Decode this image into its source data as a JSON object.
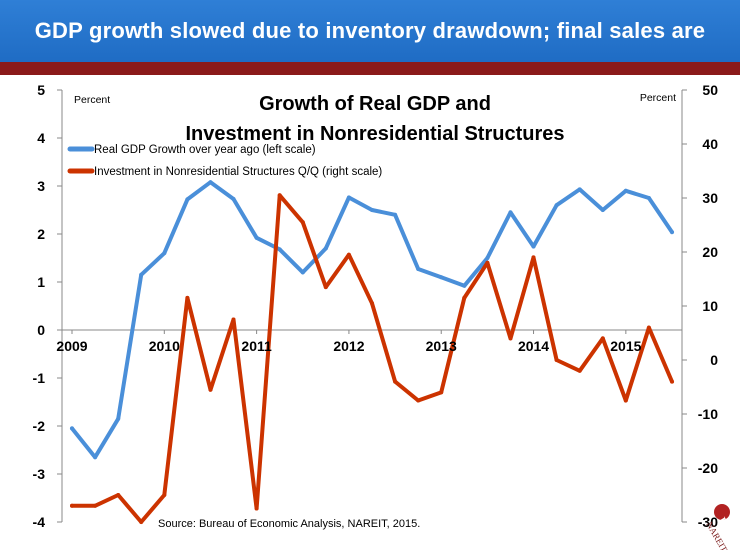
{
  "header": {
    "title": "GDP growth slowed due to inventory drawdown; final sales are robust."
  },
  "logo": {
    "text": "REIT NAREIT"
  },
  "chart_data": {
    "type": "line",
    "title_lines": [
      "Growth of Real GDP and",
      "Investment in Nonresidential Structures"
    ],
    "left_unit": "Percent",
    "right_unit": "Percent",
    "source": "Source: Bureau of Economic Analysis, NAREIT, 2015.",
    "x_tick_labels": [
      "2009",
      "2010",
      "2011",
      "2012",
      "2013",
      "2014",
      "2015"
    ],
    "left_axis": {
      "min": -4,
      "max": 5,
      "ticks": [
        "5",
        "4",
        "3",
        "2",
        "1",
        "0",
        "-1",
        "-2",
        "-3",
        "-4"
      ]
    },
    "right_axis": {
      "min": -30,
      "max": 50,
      "ticks": [
        "50",
        "40",
        "30",
        "20",
        "10",
        "0",
        "-10",
        "-20",
        "-30"
      ]
    },
    "series": [
      {
        "name": "Real GDP Growth over year ago (left scale)",
        "axis": "left",
        "color": "#4a8fd9",
        "x": [
          2009.0,
          2009.25,
          2009.5,
          2009.75,
          2010.0,
          2010.25,
          2010.5,
          2010.75,
          2011.0,
          2011.25,
          2011.5,
          2011.75,
          2012.0,
          2012.25,
          2012.5,
          2012.75,
          2013.0,
          2013.25,
          2013.5,
          2013.75,
          2014.0,
          2014.25,
          2014.5,
          2014.75,
          2015.0,
          2015.25,
          2015.5
        ],
        "values": [
          -2.05,
          -2.65,
          -1.85,
          1.15,
          1.6,
          2.72,
          3.08,
          2.73,
          1.92,
          1.68,
          1.2,
          1.7,
          2.76,
          2.5,
          2.4,
          1.27,
          1.1,
          0.92,
          1.5,
          2.45,
          1.74,
          2.6,
          2.93,
          2.5,
          2.9,
          2.75,
          2.04
        ]
      },
      {
        "name": "Investment in Nonresidential Structures Q/Q (right scale)",
        "axis": "right",
        "color": "#cc3300",
        "x": [
          2009.0,
          2009.25,
          2009.5,
          2009.75,
          2010.0,
          2010.25,
          2010.5,
          2010.75,
          2011.0,
          2011.25,
          2011.5,
          2011.75,
          2012.0,
          2012.25,
          2012.5,
          2012.75,
          2013.0,
          2013.25,
          2013.5,
          2013.75,
          2014.0,
          2014.25,
          2014.5,
          2014.75,
          2015.0,
          2015.25,
          2015.5
        ],
        "values": [
          -27,
          -27,
          -25,
          -30,
          -25,
          11.5,
          -5.5,
          7.5,
          -27.5,
          30.5,
          25.5,
          13.5,
          19.5,
          10.5,
          -4,
          -7.5,
          -6,
          11.5,
          18,
          4,
          19,
          0,
          -2,
          4,
          -7.5,
          6,
          -4
        ]
      }
    ],
    "x_range": [
      2009.0,
      2015.5
    ],
    "grid": false,
    "legend": "top-left"
  }
}
